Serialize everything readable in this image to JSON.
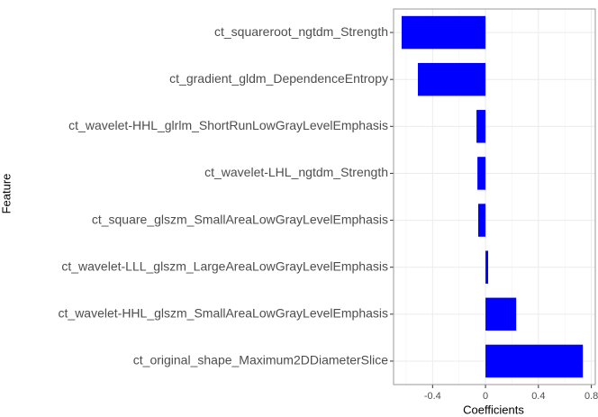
{
  "chart_data": {
    "type": "bar",
    "orientation": "horizontal",
    "x_label": "Coefficients",
    "y_label": "Feature",
    "categories": [
      "ct_squareroot_ngtdm_Strength",
      "ct_gradient_gldm_DependenceEntropy",
      "ct_wavelet-HHL_glrlm_ShortRunLowGrayLevelEmphasis",
      "ct_wavelet-LHL_ngtdm_Strength",
      "ct_square_glszm_SmallAreaLowGrayLevelEmphasis",
      "ct_wavelet-LLL_glszm_LargeAreaLowGrayLevelEmphasis",
      "ct_wavelet-HHL_glszm_SmallAreaLowGrayLevelEmphasis",
      "ct_original_shape_Maximum2DDiameterSlice"
    ],
    "values": [
      -0.634,
      -0.511,
      -0.068,
      -0.061,
      -0.055,
      0.02,
      0.232,
      0.736
    ],
    "color": "#0000ff",
    "xlim": [
      -0.695,
      0.83
    ],
    "xticks": [
      -0.4,
      0.0,
      0.4,
      0.8
    ],
    "grid": true
  }
}
